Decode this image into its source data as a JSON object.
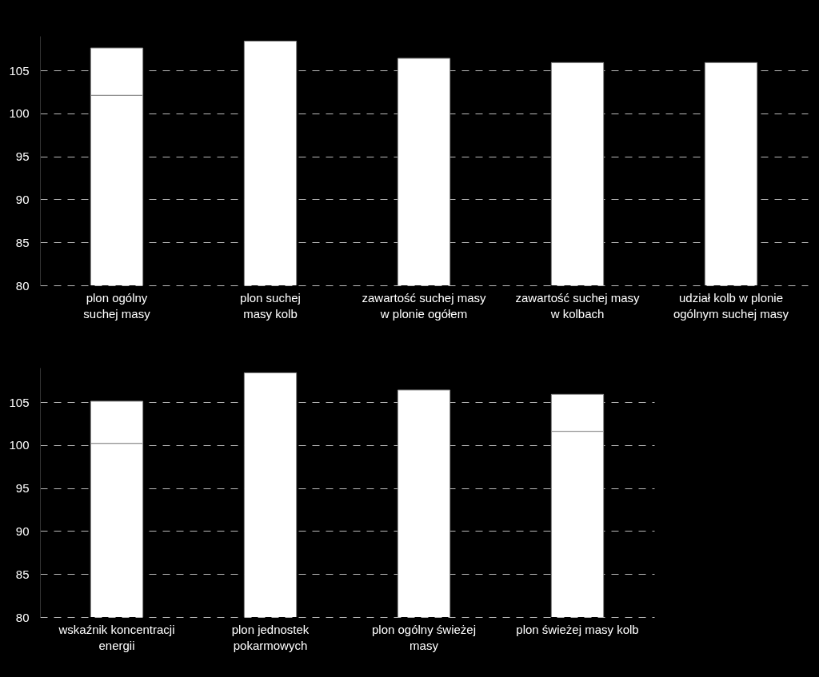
{
  "chart_data": [
    {
      "type": "bar",
      "categories": [
        "plon ogólny\nsuchej masy",
        "plon suchej\nmasy kolb",
        "zawartość suchej masy\nw plonie ogółem",
        "zawartość suchej masy\nw kolbach",
        "udział kolb w plonie\nogólnym suchej masy"
      ],
      "stacked": true,
      "series": [
        {
          "color": "#ffffff",
          "values": [
            102.1,
            108.4,
            106.4,
            105.9,
            105.9
          ]
        },
        {
          "color": "#ffffff",
          "values": [
            5.5,
            null,
            null,
            null,
            null
          ],
          "base": [
            102.1,
            null,
            null,
            null,
            null
          ]
        }
      ],
      "ylim": [
        80,
        109
      ],
      "yticks": [
        80,
        85,
        90,
        95,
        100,
        105
      ],
      "grid": "y"
    },
    {
      "type": "bar",
      "categories": [
        "wskaźnik koncentracji\nenergii",
        "plon jednostek\npokarmowych",
        "plon ogólny świeżej\nmasy",
        "plon świeżej masy kolb"
      ],
      "stacked": true,
      "series": [
        {
          "color": "#ffffff",
          "values": [
            100.2,
            108.4,
            106.4,
            101.6
          ]
        },
        {
          "color": "#ffffff",
          "values": [
            4.9,
            null,
            null,
            4.3
          ],
          "base": [
            100.2,
            null,
            null,
            101.6
          ]
        }
      ],
      "ylim": [
        80,
        109
      ],
      "yticks": [
        80,
        85,
        90,
        95,
        100,
        105
      ],
      "grid": "y"
    }
  ]
}
